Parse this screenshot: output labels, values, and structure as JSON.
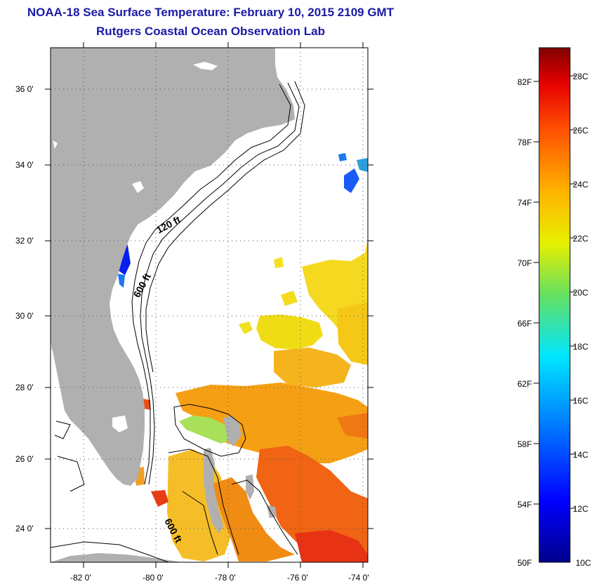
{
  "title": {
    "line1": "NOAA-18 Sea Surface Temperature:  February 10, 2015 2109 GMT",
    "line2": "Rutgers Coastal Ocean Observation Lab"
  },
  "map": {
    "lat_labels": [
      "36 0'",
      "34 0'",
      "32 0'",
      "30 0'",
      "28 0'",
      "26 0'",
      "24 0'"
    ],
    "lon_labels": [
      "-82 0'",
      "-80 0'",
      "-78 0'",
      "-76 0'",
      "-74 0'"
    ],
    "contour_labels": [
      "120 ft",
      "600 ft",
      "600 ft"
    ],
    "colors": {
      "land": "#b0b0b0",
      "ocean_no_data": "#ffffff"
    }
  },
  "colorbar": {
    "fahrenheit_labels": [
      "82F",
      "78F",
      "74F",
      "70F",
      "66F",
      "62F",
      "58F",
      "54F",
      "50F"
    ],
    "celsius_labels": [
      "28C",
      "26C",
      "24C",
      "22C",
      "20C",
      "18C",
      "16C",
      "14C",
      "12C",
      "10C"
    ]
  }
}
